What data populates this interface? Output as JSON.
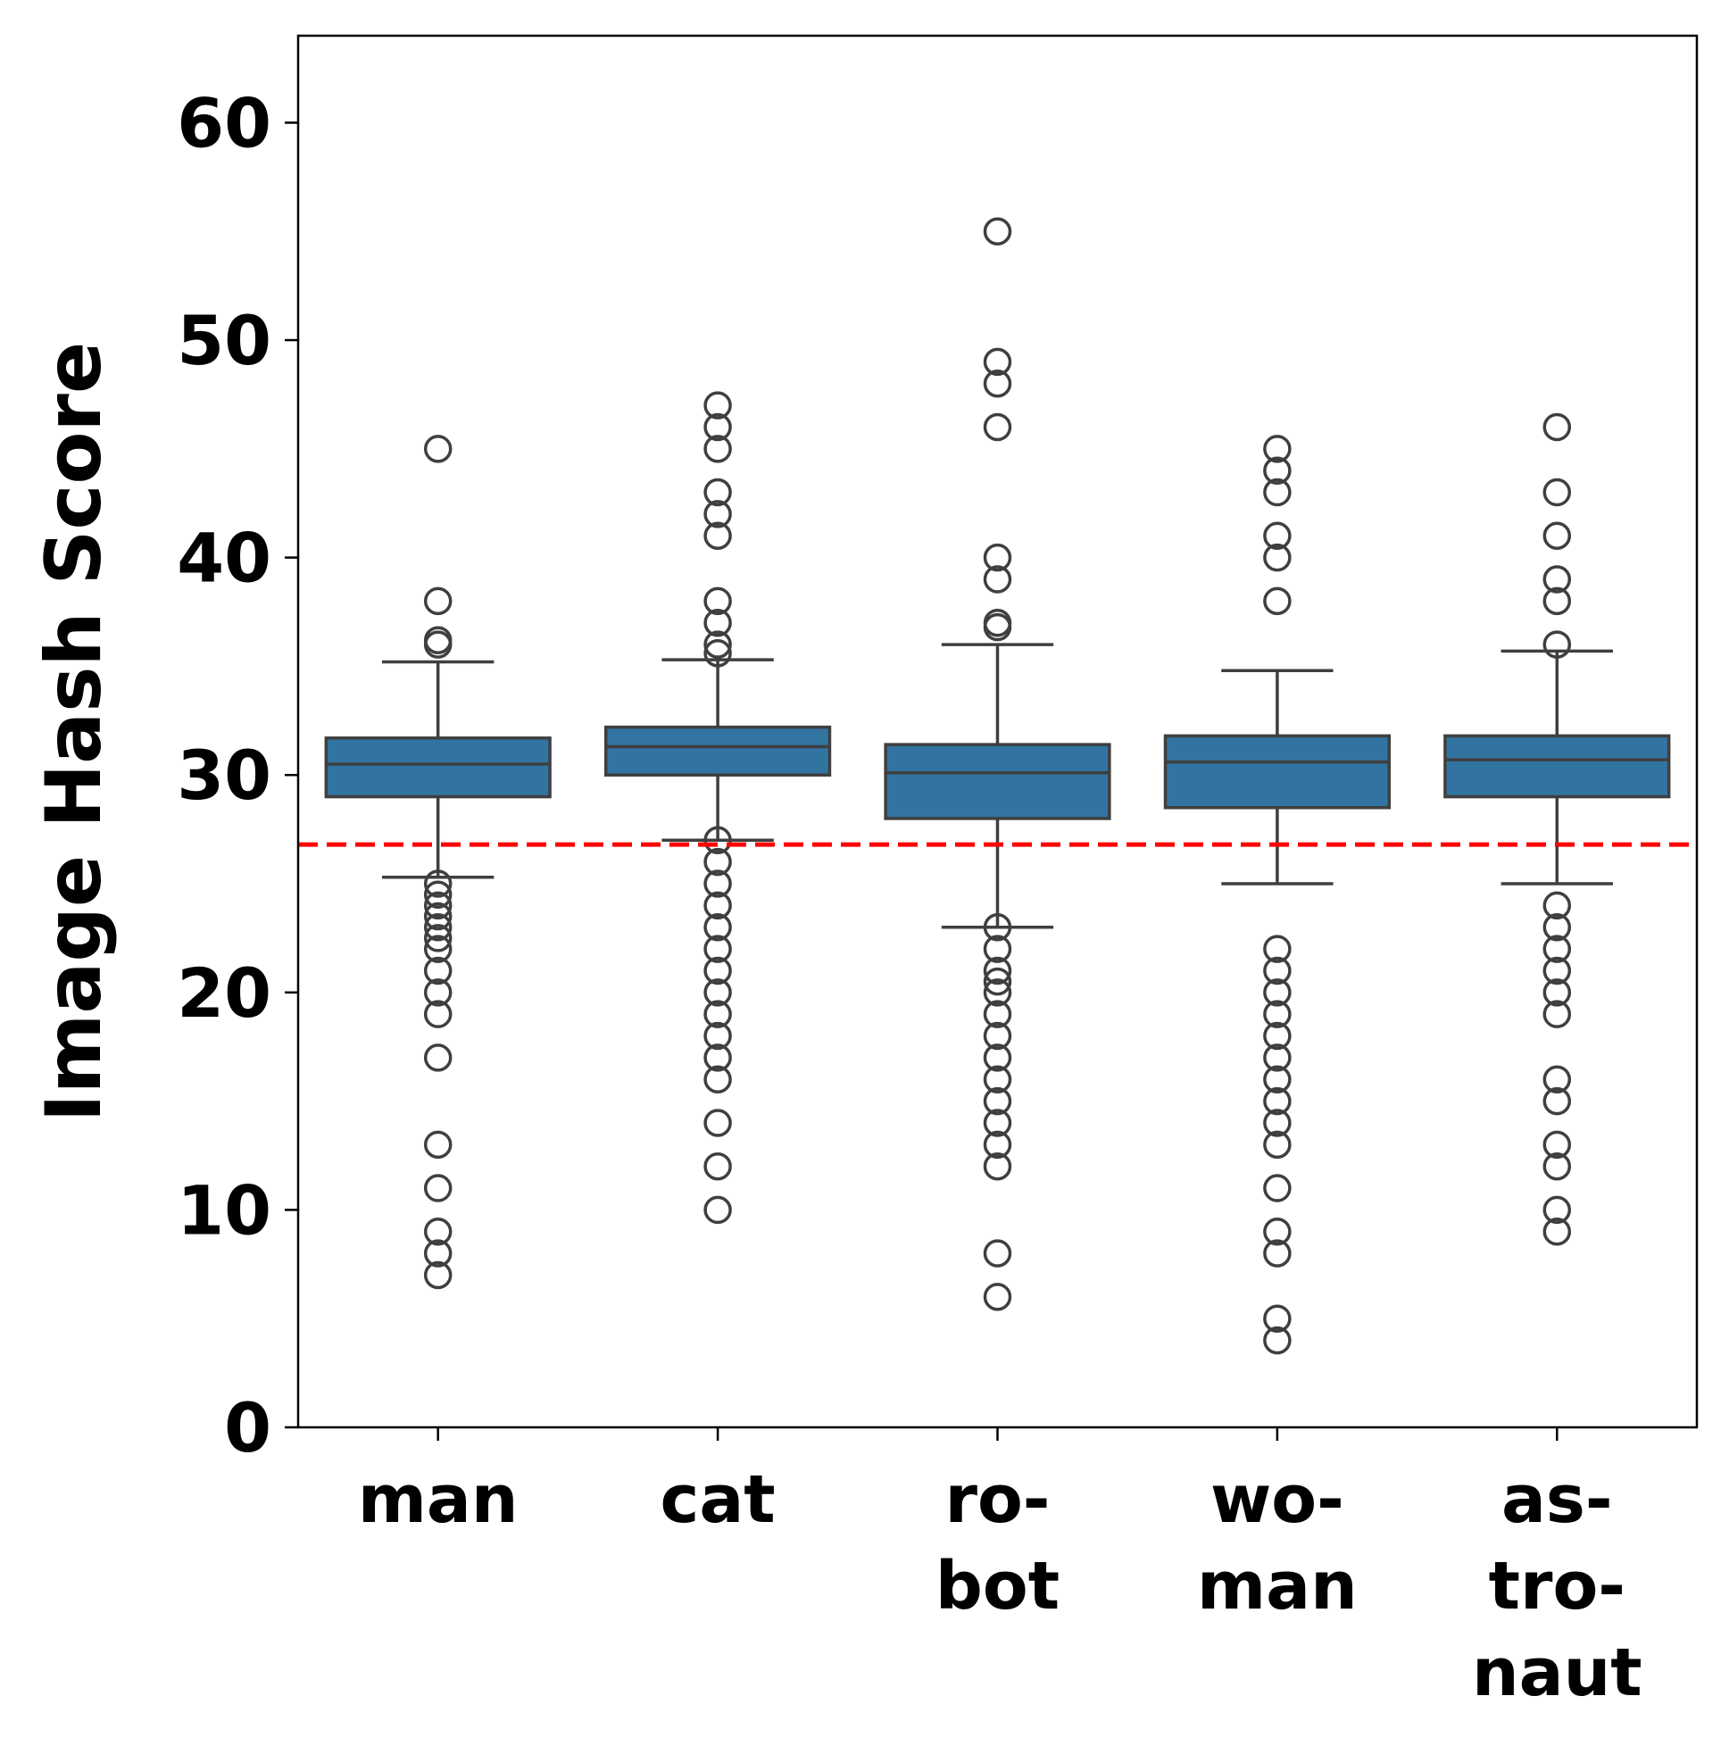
{
  "chart_data": {
    "type": "box",
    "ylabel": "Image Hash Score",
    "categories": [
      [
        "man"
      ],
      [
        "cat"
      ],
      [
        "ro-",
        "bot"
      ],
      [
        "wo-",
        "man"
      ],
      [
        "as-",
        "tro-",
        "naut"
      ]
    ],
    "color": "#3274a1",
    "edge_color": "#3f3f3f",
    "ylim": [
      0,
      64
    ],
    "yticks": [
      0,
      10,
      20,
      30,
      40,
      50,
      60
    ],
    "hline": {
      "value": 26.8,
      "color": "#ff0000",
      "style": "dashed"
    },
    "boxes": [
      {
        "whislo": 25.3,
        "q1": 29.0,
        "med": 30.5,
        "q3": 31.7,
        "whishi": 35.2,
        "fliers": [
          45,
          38,
          36.2,
          36,
          25,
          24.5,
          24,
          23.5,
          23,
          22.5,
          22,
          21,
          20,
          19,
          17,
          13,
          11,
          9,
          8,
          7
        ]
      },
      {
        "whislo": 27.0,
        "q1": 30.0,
        "med": 31.3,
        "q3": 32.2,
        "whishi": 35.3,
        "fliers": [
          47,
          46,
          45,
          43,
          42,
          41,
          38,
          37,
          36,
          35.6,
          27,
          26,
          25,
          24,
          23,
          22,
          21,
          20,
          19,
          18,
          17,
          16,
          14,
          12,
          10
        ]
      },
      {
        "whislo": 23.0,
        "q1": 28.0,
        "med": 30.1,
        "q3": 31.4,
        "whishi": 36.0,
        "fliers": [
          55,
          49,
          48,
          46,
          40,
          39,
          37,
          36.8,
          23,
          22,
          21,
          20.5,
          20,
          19,
          18,
          17,
          16,
          15,
          14,
          13,
          12,
          8,
          6
        ]
      },
      {
        "whislo": 25.0,
        "q1": 28.5,
        "med": 30.6,
        "q3": 31.8,
        "whishi": 34.8,
        "fliers": [
          45,
          44,
          43,
          41,
          40,
          38,
          22,
          21,
          20,
          19,
          18,
          17,
          16,
          15,
          14,
          13,
          11,
          9,
          8,
          5,
          4
        ]
      },
      {
        "whislo": 25.0,
        "q1": 29.0,
        "med": 30.7,
        "q3": 31.8,
        "whishi": 35.7,
        "fliers": [
          46,
          43,
          41,
          39,
          38,
          36,
          24,
          23,
          22,
          21,
          20,
          19,
          16,
          15,
          13,
          12,
          10,
          9
        ]
      }
    ]
  }
}
